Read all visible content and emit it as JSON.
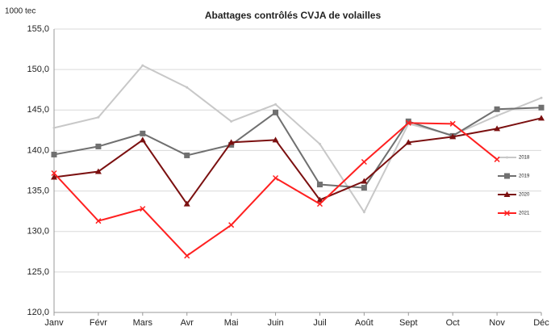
{
  "chart_data": {
    "type": "line",
    "title": "Abattages contrôlés CVJA de volailles",
    "y_label": "1000 tec",
    "categories": [
      "Janv",
      "Févr",
      "Mars",
      "Avr",
      "Mai",
      "Juin",
      "Juil",
      "Août",
      "Sept",
      "Oct",
      "Nov",
      "Déc"
    ],
    "series": [
      {
        "name": "2018",
        "color": "#c8c8c8",
        "marker": "none",
        "values": [
          142.8,
          144.1,
          150.5,
          147.8,
          143.6,
          145.7,
          140.8,
          132.4,
          143.3,
          141.9,
          144.3,
          146.5
        ]
      },
      {
        "name": "2019",
        "color": "#707070",
        "marker": "square",
        "values": [
          139.5,
          140.5,
          142.1,
          139.4,
          140.7,
          144.7,
          135.8,
          135.4,
          143.6,
          141.8,
          145.1,
          145.3
        ]
      },
      {
        "name": "2020",
        "color": "#7b1010",
        "marker": "triangle",
        "values": [
          136.7,
          137.4,
          141.3,
          133.4,
          141.0,
          141.3,
          133.9,
          136.2,
          141.0,
          141.7,
          142.7,
          144.0
        ]
      },
      {
        "name": "2021",
        "color": "#ff2020",
        "marker": "x",
        "values": [
          137.2,
          131.3,
          132.8,
          127.0,
          130.8,
          136.6,
          133.4,
          138.6,
          143.4,
          143.3,
          138.9,
          null
        ]
      }
    ],
    "ylim": [
      120,
      155
    ],
    "yticks": [
      {
        "value": 120,
        "label": "120,0"
      },
      {
        "value": 125,
        "label": "125,0"
      },
      {
        "value": 130,
        "label": "130,0"
      },
      {
        "value": 135,
        "label": "135,0"
      },
      {
        "value": 140,
        "label": "140,0"
      },
      {
        "value": 145,
        "label": "145,0"
      },
      {
        "value": 150,
        "label": "150,0"
      },
      {
        "value": 155,
        "label": "155,0"
      }
    ],
    "grid": true,
    "legend": "right"
  }
}
